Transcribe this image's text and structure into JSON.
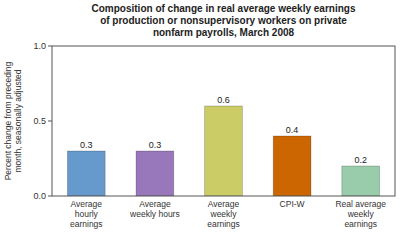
{
  "chart_data": {
    "type": "bar",
    "title": "Composition of change in real average weekly earnings\nof production or nonsupervisory workers on private\nnonfarm payrolls, March 2008",
    "categories": [
      "Average\nhourly\nearnings",
      "Average\nweekly hours",
      "Average\nweekly\nearnings",
      "CPI-W",
      "Real average\nweekly\nearnings"
    ],
    "values": [
      0.3,
      0.3,
      0.6,
      0.4,
      0.2
    ],
    "colors": [
      "#6699CC",
      "#9977BB",
      "#CCCC66",
      "#CC6600",
      "#99CCAA"
    ],
    "ylabel": "Percent change from preceding\nmonth, seasonally adjusted",
    "ylim": [
      0,
      1.0
    ],
    "yticks": [
      {
        "value": 0,
        "label": "0.0"
      },
      0.5,
      {
        "value": 1,
        "label": "1.0"
      }
    ],
    "grid": false,
    "data_labels": true
  }
}
